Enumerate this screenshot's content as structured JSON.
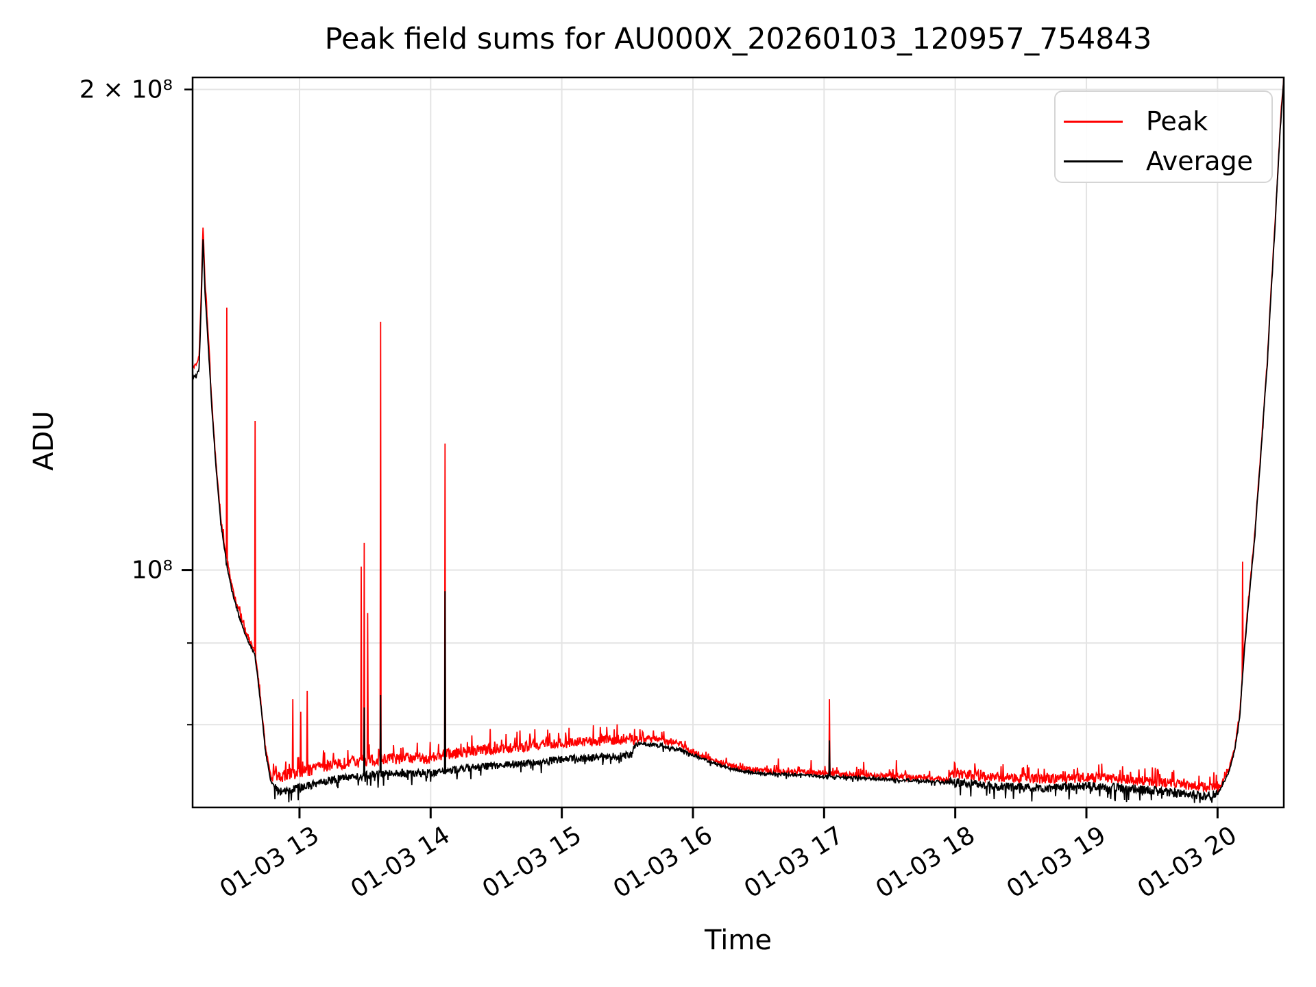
{
  "title": "Peak field sums for AU000X_20260103_120957_754843",
  "x_axis": {
    "label": "Time",
    "tick_labels": [
      "01-03 13",
      "01-03 14",
      "01-03 15",
      "01-03 16",
      "01-03 17",
      "01-03 18",
      "01-03 19",
      "01-03 20"
    ],
    "tick_hours": [
      13,
      14,
      15,
      16,
      17,
      18,
      19,
      20
    ],
    "xlim_hours": [
      12.185,
      20.505
    ]
  },
  "y_axis": {
    "label": "ADU",
    "scale": "log",
    "ticks": [
      {
        "label": "2 × 10⁸",
        "value": 200000000.0,
        "kind": "labeled-minor"
      },
      {
        "label": "10⁸",
        "value": 100000000.0,
        "kind": "major"
      }
    ],
    "minor_tick_values": [
      90000000.0,
      80000000.0
    ],
    "ylim": [
      71000000.0,
      203500000.0
    ]
  },
  "legend": {
    "items": [
      {
        "label": "Peak",
        "color": "#ff0000"
      },
      {
        "label": "Average",
        "color": "#000000"
      }
    ]
  },
  "colors": {
    "peak": "#ff0000",
    "average": "#000000",
    "grid": "#e4e4e4",
    "spine": "#000000"
  },
  "chart_data": {
    "type": "line",
    "title": "Peak field sums for AU000X_20260103_120957_754843",
    "xlabel": "Time",
    "ylabel": "ADU",
    "yscale": "log",
    "xlim": [
      12.185,
      20.505
    ],
    "ylim": [
      71000000.0,
      203500000.0
    ],
    "legend_position": "upper right",
    "grid": true,
    "series": [
      {
        "name": "Peak",
        "color": "#ff0000",
        "construction": "average_envelope * region ratio + noise + peak_spikes"
      },
      {
        "name": "Average",
        "color": "#000000",
        "construction": "average_envelope + noise + avg_spikes"
      }
    ],
    "average_envelope": [
      [
        12.185,
        132000000.0
      ],
      [
        12.215,
        132500000.0
      ],
      [
        12.235,
        134000000.0
      ],
      [
        12.252,
        148000000.0
      ],
      [
        12.265,
        162000000.0
      ],
      [
        12.278,
        150000000.0
      ],
      [
        12.3,
        140000000.0
      ],
      [
        12.33,
        127000000.0
      ],
      [
        12.36,
        117000000.0
      ],
      [
        12.4,
        107000000.0
      ],
      [
        12.447,
        100500000.0
      ],
      [
        12.5,
        96000000.0
      ],
      [
        12.55,
        93000000.0
      ],
      [
        12.6,
        90500000.0
      ],
      [
        12.66,
        88500000.0
      ],
      [
        12.7,
        83000000.0
      ],
      [
        12.74,
        77000000.0
      ],
      [
        12.78,
        73800000.0
      ],
      [
        12.84,
        72600000.0
      ],
      [
        12.92,
        72800000.0
      ],
      [
        13.0,
        73000000.0
      ],
      [
        13.15,
        73600000.0
      ],
      [
        13.35,
        74100000.0
      ],
      [
        13.55,
        74400000.0
      ],
      [
        13.75,
        74600000.0
      ],
      [
        14.0,
        74600000.0
      ],
      [
        14.25,
        75100000.0
      ],
      [
        14.55,
        75500000.0
      ],
      [
        14.85,
        75900000.0
      ],
      [
        15.15,
        76200000.0
      ],
      [
        15.45,
        76500000.0
      ],
      [
        15.53,
        76600000.0
      ],
      [
        15.56,
        77800000.0
      ],
      [
        15.72,
        77700000.0
      ],
      [
        15.9,
        77200000.0
      ],
      [
        16.1,
        76000000.0
      ],
      [
        16.3,
        75000000.0
      ],
      [
        16.5,
        74600000.0
      ],
      [
        16.8,
        74400000.0
      ],
      [
        17.1,
        74200000.0
      ],
      [
        17.4,
        74000000.0
      ],
      [
        17.7,
        73800000.0
      ],
      [
        18.0,
        73600000.0
      ],
      [
        18.3,
        73200000.0
      ],
      [
        18.7,
        73000000.0
      ],
      [
        19.0,
        73200000.0
      ],
      [
        19.3,
        73000000.0
      ],
      [
        19.6,
        72600000.0
      ],
      [
        19.9,
        72200000.0
      ],
      [
        20.0,
        72400000.0
      ],
      [
        20.08,
        74500000.0
      ],
      [
        20.13,
        77000000.0
      ],
      [
        20.17,
        81000000.0
      ],
      [
        20.2,
        88000000.0
      ],
      [
        20.24,
        96000000.0
      ],
      [
        20.28,
        104000000.0
      ],
      [
        20.33,
        118000000.0
      ],
      [
        20.38,
        135000000.0
      ],
      [
        20.44,
        165000000.0
      ],
      [
        20.48,
        190000000.0
      ],
      [
        20.505,
        203000000.0
      ]
    ],
    "ratio_regions": [
      [
        12.185,
        12.32,
        1.015,
        0.002,
        0.003
      ],
      [
        12.32,
        12.8,
        1.006,
        0.002,
        0.004
      ],
      [
        12.8,
        14.0,
        1.022,
        0.006,
        0.009
      ],
      [
        14.0,
        15.54,
        1.024,
        0.0055,
        0.008
      ],
      [
        15.54,
        15.95,
        1.008,
        0.003,
        0.005
      ],
      [
        15.95,
        17.95,
        1.004,
        0.002,
        0.004
      ],
      [
        17.95,
        20.0,
        1.013,
        0.0065,
        0.007
      ],
      [
        20.0,
        20.51,
        1.004,
        0.002,
        0.003
      ]
    ],
    "peak_spikes": [
      [
        12.447,
        146000000.0
      ],
      [
        12.66,
        124000000.0
      ],
      [
        12.95,
        83000000.0
      ],
      [
        13.01,
        81500000.0
      ],
      [
        13.06,
        84000000.0
      ],
      [
        13.47,
        100500000.0
      ],
      [
        13.492,
        104000000.0
      ],
      [
        13.52,
        94000000.0
      ],
      [
        13.617,
        143000000.0
      ],
      [
        14.11,
        120000000.0
      ],
      [
        14.455,
        79500000.0
      ],
      [
        15.553,
        79500000.0
      ],
      [
        16.65,
        76200000.0
      ],
      [
        16.9,
        76000000.0
      ],
      [
        17.042,
        83000000.0
      ],
      [
        17.3,
        75800000.0
      ],
      [
        17.55,
        76000000.0
      ],
      [
        18.55,
        75500000.0
      ],
      [
        19.4,
        75000000.0
      ],
      [
        20.19,
        101200000.0
      ]
    ],
    "avg_spikes": [
      [
        13.492,
        82000000.0
      ],
      [
        13.617,
        83500000.0
      ],
      [
        14.11,
        97000000.0
      ],
      [
        17.042,
        78200000.0
      ]
    ]
  }
}
